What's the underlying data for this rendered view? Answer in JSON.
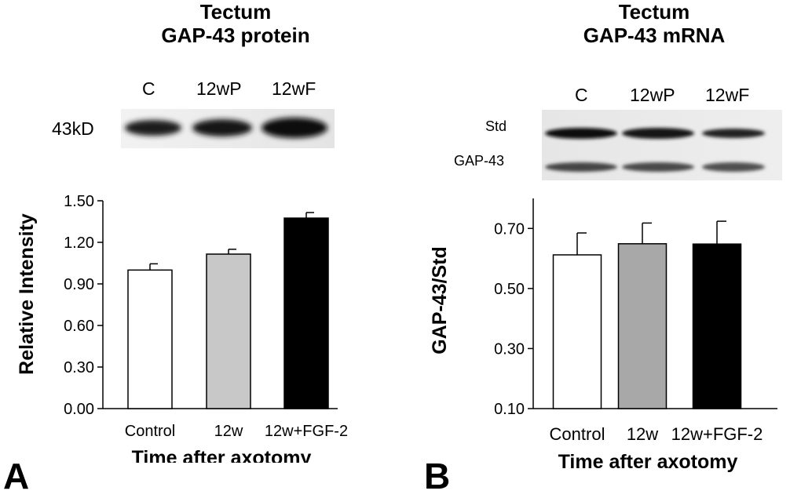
{
  "panel_a": {
    "letter": "A",
    "title_line1": "Tectum",
    "title_line2": "GAP-43 protein",
    "blot": {
      "lanes": [
        "C",
        "12wP",
        "12wF"
      ],
      "size_label": "43kD"
    }
  },
  "panel_b": {
    "letter": "B",
    "title_line1": "Tectum",
    "title_line2": "GAP-43 mRNA",
    "blot": {
      "lanes": [
        "C",
        "12wP",
        "12wF"
      ],
      "row_labels": [
        "Std",
        "GAP-43"
      ]
    }
  },
  "colors": {
    "control": "#ffffff",
    "w12": "#c8c8c8",
    "w12_fgf2": "#000000"
  },
  "chart_data": [
    {
      "type": "bar",
      "xlabel": "Time after axotomy",
      "ylabel": "Relative Intensity",
      "categories": [
        "Control",
        "12w",
        "12w+FGF-2"
      ],
      "values": [
        1.0,
        1.115,
        1.375
      ],
      "error_plus": [
        0.045,
        0.035,
        0.04
      ],
      "bar_colors": [
        "#ffffff",
        "#c8c8c8",
        "#000000"
      ],
      "ylim": [
        0,
        1.5
      ],
      "yticks": [
        0,
        0.3,
        0.6,
        0.9,
        1.2,
        1.5
      ],
      "ytick_labels": [
        "0.00",
        "0.30",
        "0.60",
        "0.90",
        "1.20",
        "1.50"
      ],
      "grid": false,
      "legend": "none"
    },
    {
      "type": "bar",
      "xlabel": "Time after axotomy",
      "ylabel": "GAP-43/Std",
      "categories": [
        "Control",
        "12w",
        "12w+FGF-2"
      ],
      "values": [
        0.612,
        0.649,
        0.648
      ],
      "error_plus": [
        0.073,
        0.069,
        0.076
      ],
      "bar_colors": [
        "#ffffff",
        "#a8a8a8",
        "#000000"
      ],
      "ylim": [
        0.1,
        0.8
      ],
      "yticks": [
        0.1,
        0.3,
        0.5,
        0.7
      ],
      "ytick_labels": [
        "0.10",
        "0.30",
        "0.50",
        "0.70"
      ],
      "grid": false,
      "legend": "none"
    }
  ]
}
